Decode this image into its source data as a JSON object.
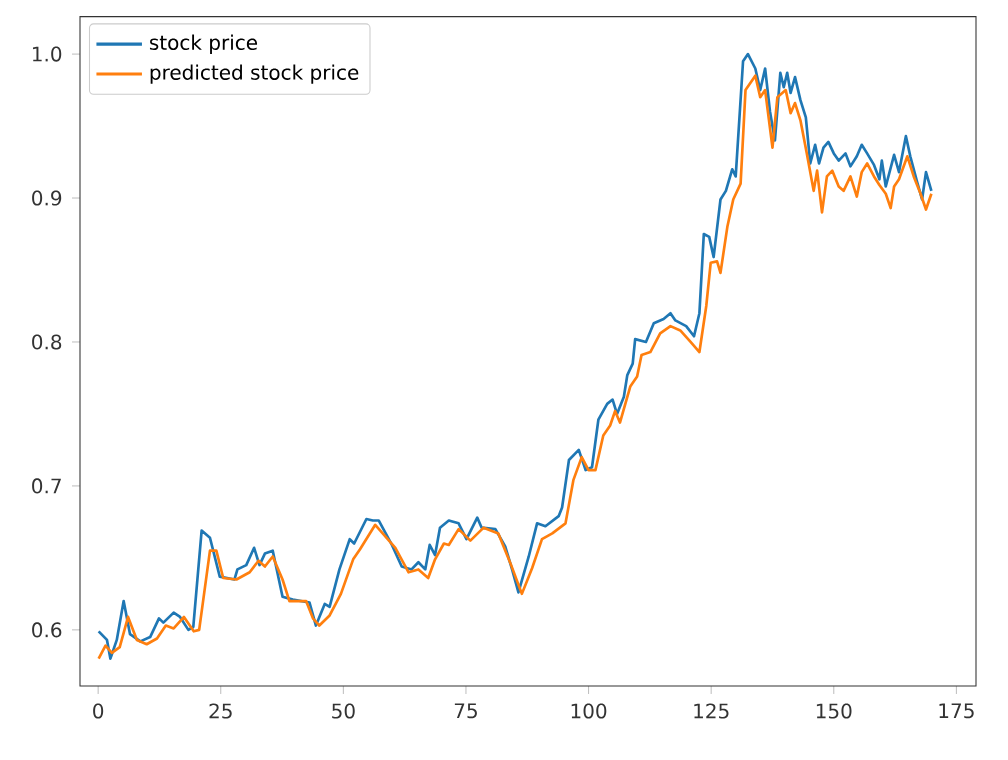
{
  "chart_data": {
    "type": "line",
    "xlim": [
      -3.7,
      179
    ],
    "ylim": [
      0.561,
      1.026
    ],
    "xticks": [
      0,
      25,
      50,
      75,
      100,
      125,
      150,
      175
    ],
    "yticks": [
      0.6,
      0.7,
      0.8,
      0.9,
      {
        "value": 1,
        "label": "1.0"
      }
    ],
    "legend": "top left",
    "grid": false,
    "marker": "none",
    "line_style": "solid",
    "series": [
      {
        "name": "stock price",
        "color": "#1f77b4",
        "x": [
          0.1,
          1.8,
          2.5,
          3.8,
          5.2,
          6.5,
          8.6,
          10.6,
          12.4,
          13.3,
          15.4,
          16.7,
          18.4,
          19.4,
          21.1,
          22.8,
          24.8,
          27.8,
          28.4,
          30.2,
          31.8,
          32.9,
          34,
          35.6,
          37.6,
          39.7,
          43.1,
          44.4,
          46.2,
          47.2,
          49.2,
          51.3,
          52.2,
          54.7,
          56,
          57.2,
          59.9,
          61.9,
          63.9,
          65.3,
          66.7,
          67.6,
          68.7,
          69.7,
          71.5,
          73.5,
          75.1,
          77.3,
          78.2,
          81,
          83,
          84.4,
          85.7,
          87.8,
          89.5,
          91.2,
          93.9,
          94.6,
          96,
          98,
          99.4,
          100.7,
          102,
          103.8,
          104.9,
          105.8,
          107.2,
          107.9,
          109,
          109.5,
          111.7,
          113.3,
          115.3,
          116.7,
          117.7,
          119.9,
          121.5,
          122.6,
          123.5,
          124.6,
          125.5,
          126.9,
          128,
          129.3,
          130,
          131.5,
          132.5,
          134,
          135,
          136,
          137,
          138,
          139.1,
          139.8,
          140.5,
          141.2,
          142.1,
          143.2,
          144.3,
          145.2,
          146.2,
          147,
          147.9,
          148.9,
          150,
          151,
          152.4,
          153.4,
          154.7,
          155.7,
          156.8,
          158.2,
          159.3,
          159.8,
          160.6,
          162.3,
          163.3,
          164.7,
          165.6,
          167,
          168,
          168.8,
          169.9
        ],
        "values": [
          0.599,
          0.593,
          0.58,
          0.593,
          0.62,
          0.597,
          0.592,
          0.595,
          0.608,
          0.605,
          0.612,
          0.609,
          0.6,
          0.602,
          0.669,
          0.664,
          0.637,
          0.635,
          0.642,
          0.645,
          0.657,
          0.645,
          0.653,
          0.655,
          0.623,
          0.621,
          0.619,
          0.603,
          0.618,
          0.616,
          0.642,
          0.663,
          0.66,
          0.677,
          0.676,
          0.676,
          0.659,
          0.644,
          0.642,
          0.647,
          0.642,
          0.659,
          0.652,
          0.671,
          0.676,
          0.674,
          0.663,
          0.678,
          0.671,
          0.67,
          0.658,
          0.642,
          0.626,
          0.651,
          0.674,
          0.672,
          0.679,
          0.685,
          0.718,
          0.725,
          0.711,
          0.713,
          0.746,
          0.757,
          0.76,
          0.75,
          0.762,
          0.777,
          0.785,
          0.802,
          0.8,
          0.813,
          0.816,
          0.82,
          0.815,
          0.811,
          0.804,
          0.82,
          0.875,
          0.873,
          0.859,
          0.899,
          0.905,
          0.92,
          0.915,
          0.995,
          1.0,
          0.99,
          0.975,
          0.99,
          0.96,
          0.94,
          0.987,
          0.977,
          0.987,
          0.973,
          0.984,
          0.968,
          0.956,
          0.924,
          0.937,
          0.924,
          0.935,
          0.939,
          0.931,
          0.926,
          0.931,
          0.922,
          0.929,
          0.937,
          0.931,
          0.923,
          0.913,
          0.926,
          0.908,
          0.93,
          0.918,
          0.943,
          0.929,
          0.911,
          0.899,
          0.918,
          0.905
        ]
      },
      {
        "name": "predicted stock price",
        "color": "#ff7f0e",
        "x": [
          0.1,
          1.5,
          2.8,
          4.4,
          6.1,
          7.9,
          9.9,
          12,
          13.8,
          15.4,
          17.5,
          19.5,
          20.6,
          22.8,
          24.1,
          25.5,
          28.2,
          30.9,
          32.7,
          34,
          35.6,
          37.6,
          39,
          42.4,
          43.8,
          45.1,
          47.2,
          49.5,
          52,
          53.4,
          56.5,
          60.6,
          63.3,
          65.3,
          67.3,
          68.7,
          70.5,
          71.5,
          73.5,
          75.9,
          78.6,
          81.6,
          84.1,
          86.4,
          88.5,
          90.5,
          92.6,
          95.3,
          96.9,
          98.6,
          100,
          101.4,
          103,
          104.4,
          105.4,
          106.4,
          108.5,
          109.9,
          110.8,
          112.6,
          114.6,
          116.7,
          118.7,
          120.8,
          122.6,
          124,
          124.9,
          126.2,
          126.9,
          128.3,
          129.5,
          131,
          132,
          134,
          135,
          136,
          137.5,
          138.5,
          140.2,
          141.2,
          142.1,
          143.2,
          144.5,
          145.9,
          146.6,
          147.6,
          148.6,
          149.7,
          151,
          152,
          153.4,
          154.7,
          155.7,
          156.8,
          158.2,
          159.3,
          160.6,
          161.6,
          162.3,
          163.3,
          165,
          166.3,
          167.7,
          168.8,
          169.9
        ],
        "values": [
          0.58,
          0.589,
          0.584,
          0.588,
          0.609,
          0.593,
          0.59,
          0.594,
          0.603,
          0.601,
          0.609,
          0.599,
          0.6,
          0.655,
          0.655,
          0.636,
          0.635,
          0.64,
          0.648,
          0.644,
          0.651,
          0.635,
          0.62,
          0.62,
          0.608,
          0.603,
          0.61,
          0.625,
          0.649,
          0.656,
          0.673,
          0.657,
          0.64,
          0.642,
          0.636,
          0.649,
          0.66,
          0.659,
          0.67,
          0.662,
          0.671,
          0.667,
          0.646,
          0.625,
          0.643,
          0.663,
          0.667,
          0.674,
          0.704,
          0.72,
          0.711,
          0.711,
          0.735,
          0.742,
          0.752,
          0.744,
          0.769,
          0.776,
          0.791,
          0.793,
          0.806,
          0.811,
          0.808,
          0.8,
          0.793,
          0.825,
          0.855,
          0.856,
          0.848,
          0.88,
          0.899,
          0.91,
          0.975,
          0.985,
          0.97,
          0.975,
          0.935,
          0.97,
          0.975,
          0.959,
          0.966,
          0.954,
          0.931,
          0.905,
          0.919,
          0.89,
          0.915,
          0.919,
          0.908,
          0.905,
          0.915,
          0.901,
          0.918,
          0.924,
          0.915,
          0.909,
          0.903,
          0.893,
          0.908,
          0.913,
          0.929,
          0.915,
          0.903,
          0.892,
          0.903
        ]
      }
    ]
  }
}
